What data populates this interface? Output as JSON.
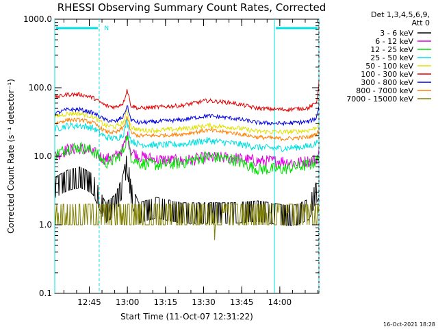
{
  "chart_data": {
    "type": "line",
    "title": "RHESSI Observing Summary Count Rates, Corrected",
    "ylabel": "Corrected Count Rate (s⁻¹ detector⁻¹)",
    "xlabel": "Start Time (11-Oct-07 12:31:22)",
    "yscale": "log",
    "ylim": [
      0.1,
      1000.0
    ],
    "xlim_minutes": [
      0,
      104
    ],
    "y_ticks": [
      "1000.0",
      "100.0",
      "10.0",
      "1.0",
      "0.1"
    ],
    "x_ticks": [
      {
        "label": "12:45",
        "minute": 13.6
      },
      {
        "label": "13:00",
        "minute": 28.6
      },
      {
        "label": "13:15",
        "minute": 43.6
      },
      {
        "label": "13:30",
        "minute": 58.6
      },
      {
        "label": "13:45",
        "minute": 73.6
      },
      {
        "label": "14:00",
        "minute": 88.6
      }
    ],
    "legend_header": [
      "Det 1,3,4,5,6,9,",
      "Att 0"
    ],
    "legend_position": "right",
    "flags": {
      "night_intervals_minutes": [
        [
          0,
          17.5
        ],
        [
          86.5,
          104
        ]
      ],
      "saa_marker": "N",
      "saa_marker_minute": 19.5,
      "vertical_lines_minutes": [
        0,
        17.5,
        86.5,
        104
      ],
      "line_color": "#00e0e0"
    },
    "x": [
      0,
      5,
      10,
      15,
      20,
      24,
      27,
      28.5,
      30,
      33,
      40,
      50,
      60,
      70,
      80,
      90,
      95,
      100,
      103,
      104
    ],
    "series": [
      {
        "name": "3 - 6 keV",
        "color": "#000000",
        "values": [
          3.5,
          4.5,
          5.0,
          4.0,
          1.5,
          2.0,
          4.0,
          8.5,
          3.0,
          1.5,
          1.8,
          1.5,
          1.5,
          1.5,
          1.6,
          1.4,
          1.4,
          1.7,
          3.0,
          3.5
        ]
      },
      {
        "name": "6 - 12 keV",
        "color": "#e000e0",
        "values": [
          10.0,
          12.5,
          13.0,
          11.5,
          9.0,
          10.0,
          13.0,
          21.0,
          12.0,
          10.0,
          9.0,
          8.5,
          9.5,
          9.5,
          8.5,
          8.5,
          8.0,
          8.5,
          9.0,
          11.0
        ]
      },
      {
        "name": "12 - 25 keV",
        "color": "#00e000",
        "values": [
          10.5,
          13.0,
          13.5,
          12.0,
          8.0,
          9.0,
          12.0,
          20.0,
          10.0,
          8.0,
          7.5,
          8.0,
          10.0,
          9.0,
          6.5,
          6.5,
          7.0,
          7.5,
          8.5,
          10.0
        ]
      },
      {
        "name": "25 - 50 keV",
        "color": "#00e0e0",
        "values": [
          25.0,
          28.0,
          28.0,
          26.0,
          19.0,
          18.0,
          21.0,
          33.0,
          17.0,
          15.0,
          14.5,
          15.0,
          17.0,
          15.5,
          13.5,
          13.0,
          13.5,
          14.0,
          15.5,
          18.0
        ]
      },
      {
        "name": "50 - 100 keV",
        "color": "#e0e000",
        "values": [
          38.0,
          42.0,
          42.0,
          38.0,
          28.0,
          27.0,
          31.0,
          47.0,
          27.0,
          24.0,
          24.0,
          25.0,
          28.0,
          26.5,
          23.0,
          22.5,
          23.0,
          24.0,
          26.0,
          31.0
        ]
      },
      {
        "name": "100 - 300 keV",
        "color": "#e00000",
        "values": [
          72.0,
          80.0,
          80.0,
          72.0,
          55.0,
          52.0,
          60.0,
          95.0,
          55.0,
          50.0,
          52.0,
          55.0,
          65.0,
          60.0,
          50.0,
          48.0,
          49.0,
          51.0,
          60.0,
          115.0
        ]
      },
      {
        "name": "300 - 800 keV",
        "color": "#0000e0",
        "values": [
          42.0,
          48.0,
          48.0,
          43.0,
          34.0,
          32.0,
          38.0,
          55.0,
          34.0,
          31.0,
          32.0,
          34.0,
          39.0,
          36.0,
          31.0,
          30.0,
          31.0,
          32.0,
          36.0,
          55.0
        ]
      },
      {
        "name": "800 - 7000 keV",
        "color": "#ff7f00",
        "values": [
          30.0,
          34.0,
          34.0,
          31.0,
          23.0,
          22.0,
          26.0,
          38.0,
          22.0,
          20.0,
          20.0,
          21.0,
          24.0,
          22.0,
          19.0,
          18.0,
          18.5,
          19.0,
          21.0,
          25.0
        ]
      },
      {
        "name": "7000 - 15000 keV",
        "color": "#808000",
        "values": [
          1.0,
          2.0,
          2.0,
          1.5,
          1.5,
          1.0,
          1.5,
          2.0,
          1.0,
          1.5,
          1.0,
          1.5,
          1.0,
          1.0,
          1.0,
          1.5,
          1.0,
          1.5,
          1.0,
          2.0
        ]
      }
    ]
  },
  "footer": {
    "timestamp": "16-Oct-2021 18:28"
  }
}
